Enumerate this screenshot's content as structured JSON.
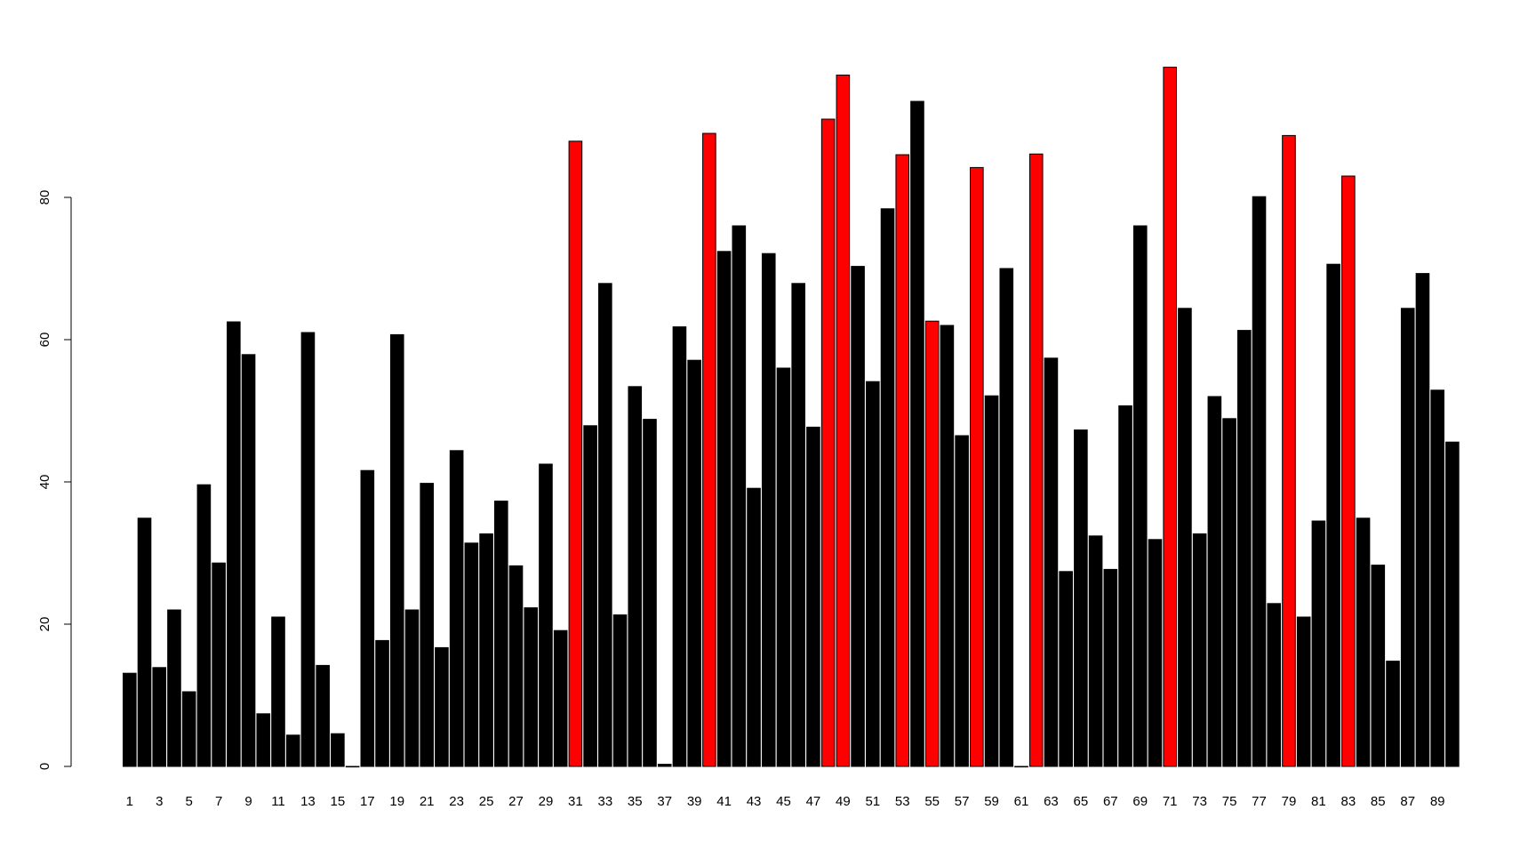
{
  "chart_data": {
    "type": "bar",
    "title": "",
    "xlabel": "",
    "ylabel": "",
    "ylim": [
      0,
      100
    ],
    "yticks": [
      0,
      20,
      40,
      60,
      80
    ],
    "colors": {
      "normal": "#000000",
      "highlight": "#ff0000"
    },
    "categories": [
      "1",
      "2",
      "3",
      "4",
      "5",
      "6",
      "7",
      "8",
      "9",
      "10",
      "11",
      "12",
      "13",
      "14",
      "15",
      "16",
      "17",
      "18",
      "19",
      "20",
      "21",
      "22",
      "23",
      "24",
      "25",
      "26",
      "27",
      "28",
      "29",
      "30",
      "31",
      "32",
      "33",
      "34",
      "35",
      "36",
      "37",
      "38",
      "39",
      "40",
      "41",
      "42",
      "43",
      "44",
      "45",
      "46",
      "47",
      "48",
      "49",
      "50",
      "51",
      "52",
      "53",
      "54",
      "55",
      "56",
      "57",
      "58",
      "59",
      "60",
      "61",
      "62",
      "63",
      "64",
      "65",
      "66",
      "67",
      "68",
      "69",
      "70",
      "71",
      "72",
      "73",
      "74",
      "75",
      "76",
      "77",
      "78",
      "79",
      "80",
      "81",
      "82",
      "83",
      "84",
      "85",
      "86",
      "87",
      "88",
      "89",
      "90"
    ],
    "x_tick_labels": [
      "1",
      "3",
      "5",
      "7",
      "9",
      "11",
      "13",
      "15",
      "17",
      "19",
      "21",
      "23",
      "25",
      "27",
      "29",
      "31",
      "33",
      "35",
      "37",
      "39",
      "41",
      "43",
      "45",
      "47",
      "49",
      "51",
      "53",
      "55",
      "57",
      "59",
      "61",
      "63",
      "65",
      "67",
      "69",
      "71",
      "73",
      "75",
      "77",
      "79",
      "81",
      "83",
      "85",
      "87",
      "89"
    ],
    "values": [
      13.1,
      34.9,
      13.9,
      22.0,
      10.5,
      39.6,
      28.6,
      62.5,
      57.9,
      7.4,
      21.0,
      4.4,
      61.0,
      14.2,
      4.6,
      0.0,
      41.6,
      17.7,
      60.7,
      22.0,
      39.8,
      16.7,
      44.4,
      31.4,
      32.7,
      37.3,
      28.2,
      22.3,
      42.5,
      19.1,
      87.9,
      47.9,
      67.9,
      21.3,
      53.4,
      48.8,
      0.3,
      61.8,
      57.1,
      89.0,
      72.4,
      76.0,
      39.1,
      72.1,
      56.0,
      67.9,
      47.7,
      91.0,
      97.2,
      70.3,
      54.1,
      78.4,
      86.0,
      93.5,
      62.6,
      62.0,
      46.5,
      84.2,
      52.1,
      70.0,
      0.0,
      86.1,
      57.4,
      27.4,
      47.3,
      32.4,
      27.7,
      50.7,
      76.0,
      31.9,
      98.3,
      64.4,
      32.7,
      52.0,
      48.9,
      61.3,
      80.1,
      22.9,
      88.7,
      21.0,
      34.5,
      70.6,
      83.0,
      34.9,
      28.3,
      14.8,
      64.4,
      69.3,
      52.9,
      45.6
    ],
    "highlighted_indices": [
      31,
      40,
      48,
      49,
      53,
      55,
      58,
      62,
      71,
      79,
      83
    ]
  }
}
